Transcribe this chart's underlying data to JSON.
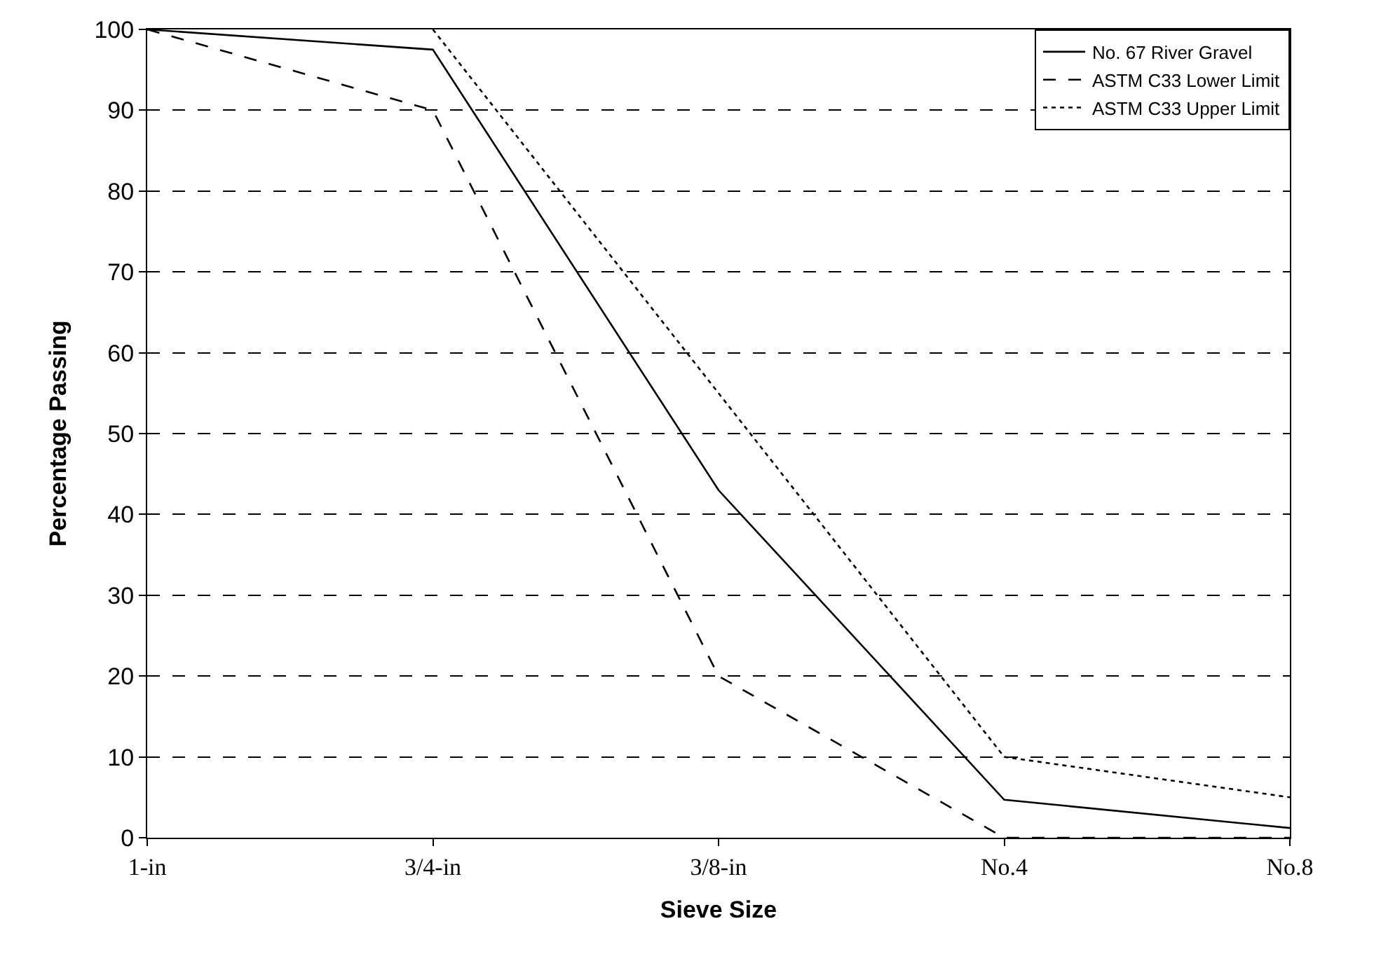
{
  "chart_data": {
    "type": "line",
    "xlabel": "Sieve Size",
    "ylabel": "Percentage Passing",
    "categories": [
      "1-in",
      "3/4-in",
      "3/8-in",
      "No.4",
      "No.8"
    ],
    "series": [
      {
        "name": "No. 67 River Gravel",
        "color": "#000000",
        "line_style": "solid",
        "values": [
          100,
          97.5,
          43,
          4.7,
          1.2
        ]
      },
      {
        "name": "ASTM C33 Lower Limit",
        "color": "#000000",
        "line_style": "dashed",
        "values": [
          100,
          90,
          20,
          0,
          0
        ]
      },
      {
        "name": "ASTM C33 Upper Limit",
        "color": "#000000",
        "line_style": "dotted",
        "values": [
          null,
          100,
          55,
          10,
          5
        ]
      }
    ],
    "ylim": [
      0,
      100
    ],
    "yticks": [
      0,
      10,
      20,
      30,
      40,
      50,
      60,
      70,
      80,
      90,
      100
    ],
    "grid": "y",
    "legend": "top right",
    "marker": "none"
  }
}
